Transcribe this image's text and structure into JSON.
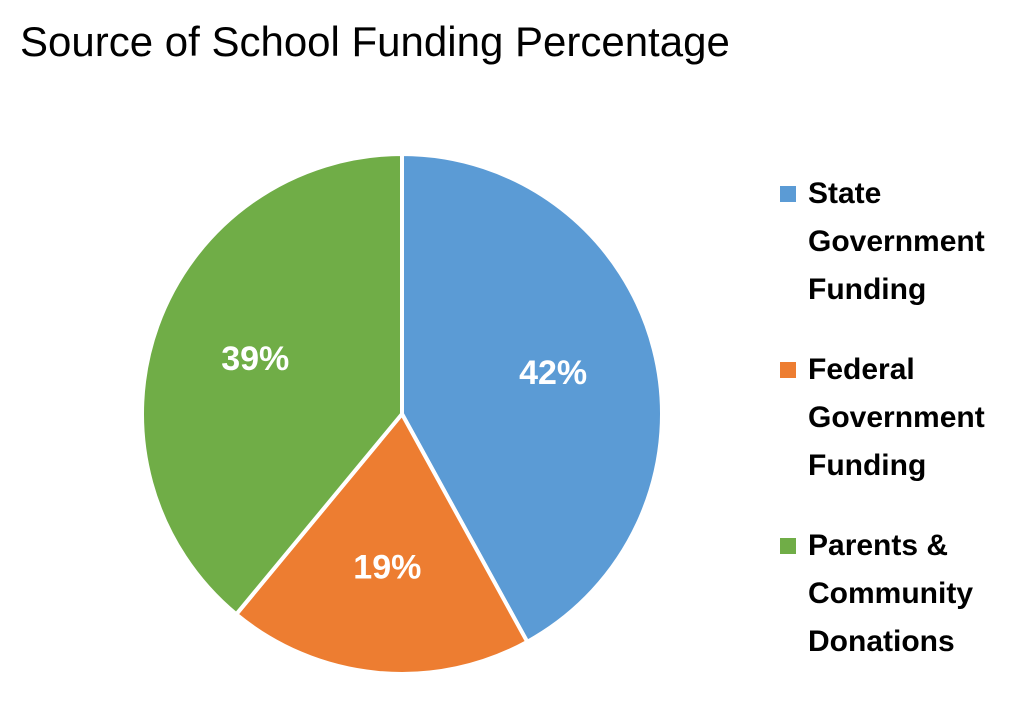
{
  "chart_data": {
    "type": "pie",
    "title": "Source of School Funding Percentage",
    "categories": [
      "State Government Funding",
      "Federal Government Funding",
      "Parents & Community Donations"
    ],
    "values": [
      42,
      19,
      39
    ],
    "data_labels": [
      "42%",
      "19%",
      "39%"
    ],
    "colors": [
      "#5b9bd5",
      "#ed7d31",
      "#70ad47"
    ],
    "legend_position": "right"
  },
  "legend_lines": [
    [
      "State",
      "Government",
      "Funding"
    ],
    [
      "Federal",
      "Government",
      "Funding"
    ],
    [
      "Parents &",
      "Community",
      "Donations"
    ]
  ]
}
